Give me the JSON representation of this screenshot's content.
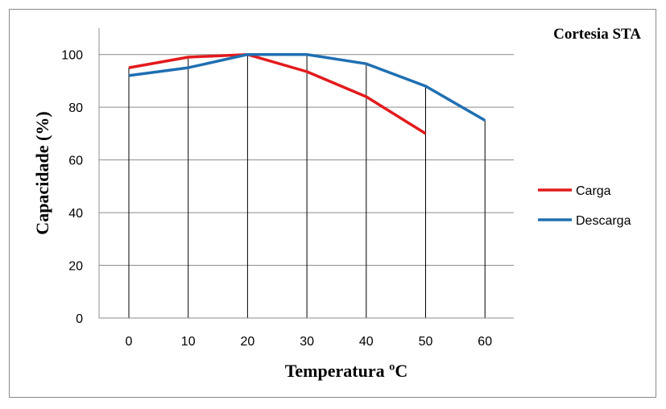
{
  "chart_data": {
    "type": "line",
    "title": "",
    "annotation": "Cortesia STA",
    "xlabel": "Temperatura ºC",
    "ylabel": "Capacidade (%)",
    "x": [
      0,
      10,
      20,
      30,
      40,
      50,
      60
    ],
    "x_tick_labels": [
      "0",
      "10",
      "20",
      "30",
      "40",
      "50",
      "60"
    ],
    "ylim": [
      0,
      110
    ],
    "y_ticks": [
      0,
      20,
      40,
      60,
      80,
      100
    ],
    "y_tick_labels": [
      "0",
      "20",
      "40",
      "60",
      "80",
      "100"
    ],
    "grid": "horizontal at y ticks; vertical drop lines at each x category",
    "legend_position": "right",
    "series": [
      {
        "name": "Carga",
        "color": "#e31a1c",
        "values": [
          95,
          99,
          100,
          93.5,
          84,
          70,
          null
        ]
      },
      {
        "name": "Descarga",
        "color": "#1f6fb2",
        "values": [
          92,
          95,
          100,
          100,
          96.5,
          88,
          75
        ]
      }
    ]
  }
}
